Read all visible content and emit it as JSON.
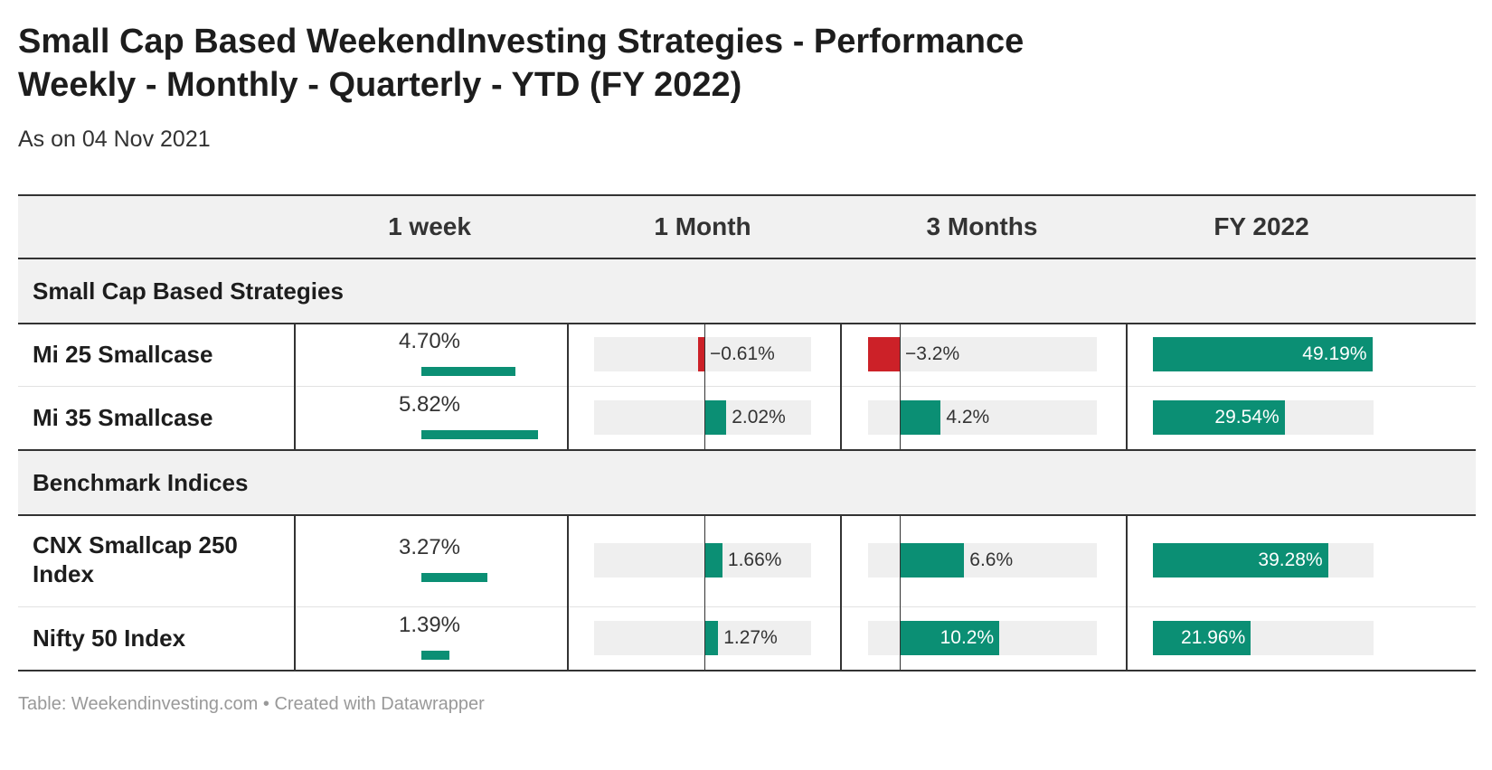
{
  "title_lines": [
    "Small Cap Based WeekendInvesting Strategies - Performance",
    "Weekly - Monthly - Quarterly - YTD (FY 2022)"
  ],
  "subtitle": "As on 04 Nov 2021",
  "footer": "Table: Weekendinvesting.com • Created with Datawrapper",
  "colors": {
    "positive": "#0b8f74",
    "negative": "#cc2128",
    "track": "#efefef"
  },
  "chart_data": {
    "type": "table",
    "columns": [
      "",
      "1 week",
      "1 Month",
      "3 Months",
      "FY 2022"
    ],
    "groups": [
      {
        "name": "Small Cap Based Strategies",
        "rows": [
          {
            "name": "Mi 25 Smallcase",
            "week": 4.7,
            "week_label": "4.70%",
            "month": -0.61,
            "month_label": "−0.61%",
            "quarter": -3.2,
            "quarter_label": "−3.2%",
            "fy": 49.19,
            "fy_label": "49.19%"
          },
          {
            "name": "Mi 35 Smallcase",
            "week": 5.82,
            "week_label": "5.82%",
            "month": 2.02,
            "month_label": "2.02%",
            "quarter": 4.2,
            "quarter_label": "4.2%",
            "fy": 29.54,
            "fy_label": "29.54%"
          }
        ]
      },
      {
        "name": "Benchmark Indices",
        "rows": [
          {
            "name": "CNX Smallcap 250 Index",
            "week": 3.27,
            "week_label": "3.27%",
            "month": 1.66,
            "month_label": "1.66%",
            "quarter": 6.6,
            "quarter_label": "6.6%",
            "fy": 39.28,
            "fy_label": "39.28%"
          },
          {
            "name": "Nifty 50 Index",
            "week": 1.39,
            "week_label": "1.39%",
            "month": 1.27,
            "month_label": "1.27%",
            "quarter": 10.2,
            "quarter_label": "10.2%",
            "fy": 21.96,
            "fy_label": "21.96%"
          }
        ]
      }
    ]
  }
}
